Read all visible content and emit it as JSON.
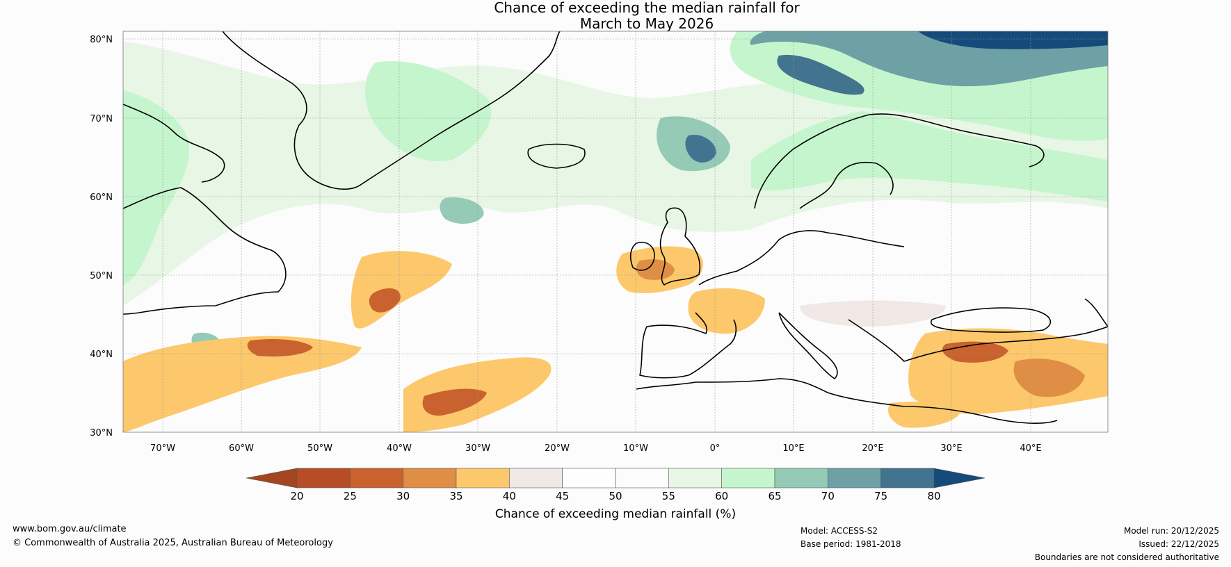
{
  "title": {
    "line1": "Chance of exceeding the median rainfall for",
    "line2": "March to May 2026"
  },
  "axes": {
    "lat_labels": [
      "80°N",
      "70°N",
      "60°N",
      "50°N",
      "40°N",
      "30°N"
    ],
    "lon_labels": [
      "70°W",
      "60°W",
      "50°W",
      "40°W",
      "30°W",
      "20°W",
      "10°W",
      "0°",
      "10°E",
      "20°E",
      "30°E",
      "40°E"
    ]
  },
  "colorbar": {
    "ticks": [
      "20",
      "25",
      "30",
      "35",
      "40",
      "45",
      "50",
      "55",
      "60",
      "65",
      "70",
      "75",
      "80"
    ],
    "colors": [
      "#a3461f",
      "#b64d27",
      "#c9622e",
      "#df8f45",
      "#fcc86b",
      "#efe8e4",
      "#fefefe",
      "#fbfcfb",
      "#e7f6e5",
      "#c5f5cc",
      "#94cab6",
      "#6ea1a6",
      "#42738f",
      "#144b7a"
    ],
    "label": "Chance of exceeding median rainfall (%)"
  },
  "footer": {
    "website": "www.bom.gov.au/climate",
    "copyright": "© Commonwealth of Australia 2025, Australian Bureau of Meteorology",
    "model": "Model: ACCESS-S2",
    "base_period": "Base period: 1981-2018",
    "model_run": "Model run: 20/12/2025",
    "issued": "Issued: 22/12/2025",
    "disclaimer": "Boundaries are not considered authoritative"
  }
}
